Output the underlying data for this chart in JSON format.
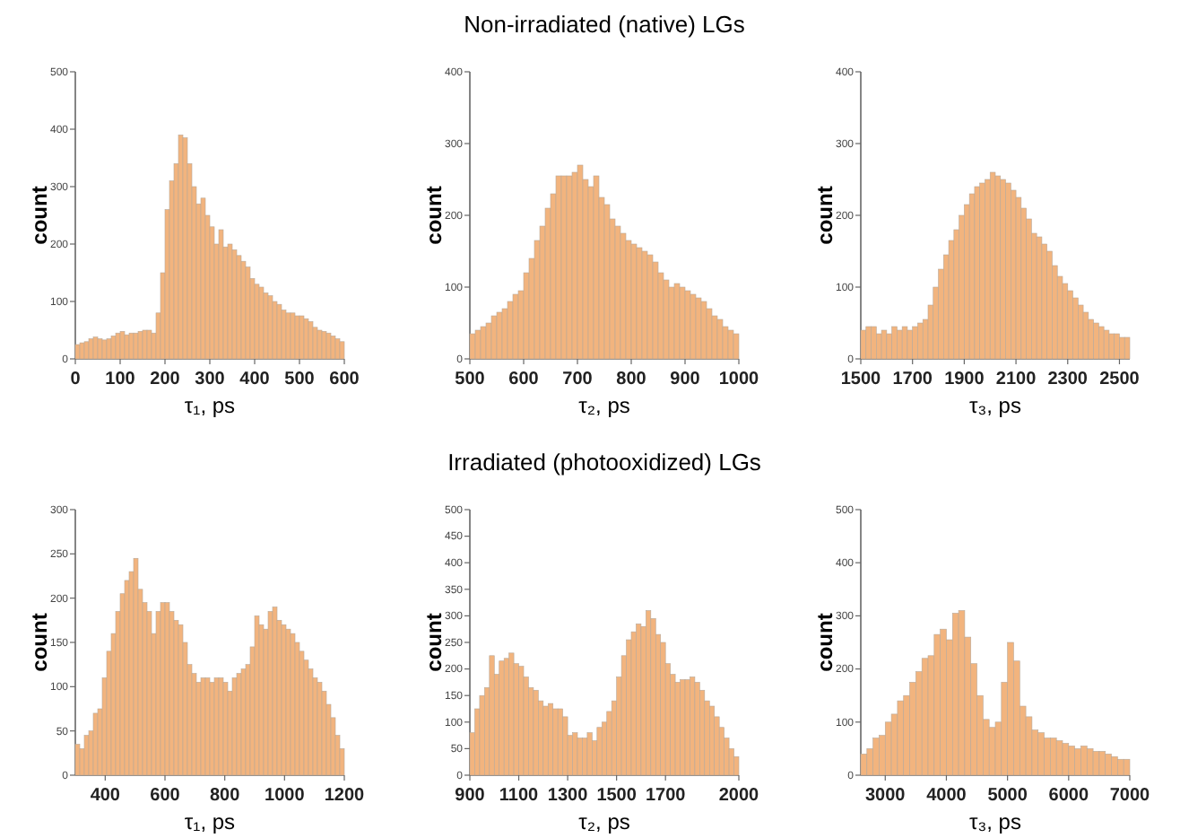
{
  "chart_data": [
    {
      "type": "histogram",
      "xlabel": "τ₁, ps",
      "ylabel": "count",
      "color": "#f2b47e",
      "xlim": [
        0,
        600
      ],
      "ylim": [
        0,
        500
      ],
      "xticks": [
        0,
        100,
        200,
        300,
        400,
        500,
        600
      ],
      "yticks": [
        0,
        100,
        200,
        300,
        400,
        500
      ],
      "bins": [
        0,
        10,
        20,
        30,
        40,
        50,
        60,
        70,
        80,
        90,
        100,
        110,
        120,
        130,
        140,
        150,
        160,
        170,
        180,
        190,
        200,
        210,
        220,
        230,
        240,
        250,
        260,
        270,
        280,
        290,
        300,
        310,
        320,
        330,
        340,
        350,
        360,
        370,
        380,
        390,
        400,
        410,
        420,
        430,
        440,
        450,
        460,
        470,
        480,
        490,
        500,
        510,
        520,
        530,
        540,
        550,
        560,
        570,
        580,
        590,
        600
      ],
      "values": [
        25,
        28,
        30,
        35,
        38,
        35,
        33,
        35,
        40,
        45,
        48,
        42,
        45,
        45,
        48,
        50,
        50,
        45,
        80,
        150,
        260,
        310,
        340,
        390,
        385,
        340,
        300,
        270,
        280,
        250,
        230,
        200,
        225,
        195,
        200,
        190,
        180,
        170,
        160,
        140,
        130,
        125,
        115,
        110,
        100,
        95,
        85,
        80,
        80,
        75,
        75,
        70,
        65,
        55,
        50,
        48,
        45,
        40,
        35,
        30
      ]
    },
    {
      "type": "histogram",
      "title": "Non-irradiated (native) LGs",
      "xlabel": "τ₂, ps",
      "ylabel": "count",
      "color": "#f2b47e",
      "xlim": [
        500,
        1000
      ],
      "ylim": [
        0,
        400
      ],
      "xticks": [
        500,
        600,
        700,
        800,
        900,
        1000
      ],
      "yticks": [
        0,
        100,
        200,
        300,
        400
      ],
      "bins": [
        500,
        510,
        520,
        530,
        540,
        550,
        560,
        570,
        580,
        590,
        600,
        610,
        620,
        630,
        640,
        650,
        660,
        670,
        680,
        690,
        700,
        710,
        720,
        730,
        740,
        750,
        760,
        770,
        780,
        790,
        800,
        810,
        820,
        830,
        840,
        850,
        860,
        870,
        880,
        890,
        900,
        910,
        920,
        930,
        940,
        950,
        960,
        970,
        980,
        990,
        1000
      ],
      "values": [
        35,
        40,
        45,
        50,
        60,
        65,
        70,
        80,
        90,
        95,
        120,
        140,
        165,
        185,
        210,
        230,
        255,
        255,
        255,
        260,
        270,
        250,
        240,
        255,
        225,
        215,
        195,
        185,
        175,
        165,
        160,
        155,
        150,
        145,
        135,
        120,
        110,
        100,
        105,
        100,
        95,
        90,
        85,
        80,
        70,
        60,
        55,
        45,
        40,
        35
      ]
    },
    {
      "type": "histogram",
      "xlabel": "τ₃, ps",
      "ylabel": "count",
      "color": "#f2b47e",
      "xlim": [
        1500,
        2540
      ],
      "ylim": [
        0,
        400
      ],
      "xticks": [
        1500,
        1700,
        1900,
        2100,
        2300,
        2500
      ],
      "yticks": [
        0,
        100,
        200,
        300,
        400
      ],
      "bins": [
        1500,
        1520,
        1540,
        1560,
        1580,
        1600,
        1620,
        1640,
        1660,
        1680,
        1700,
        1720,
        1740,
        1760,
        1780,
        1800,
        1820,
        1840,
        1860,
        1880,
        1900,
        1920,
        1940,
        1960,
        1980,
        2000,
        2020,
        2040,
        2060,
        2080,
        2100,
        2120,
        2140,
        2160,
        2180,
        2200,
        2220,
        2240,
        2260,
        2280,
        2300,
        2320,
        2340,
        2360,
        2380,
        2400,
        2420,
        2440,
        2460,
        2480,
        2500,
        2520,
        2540
      ],
      "values": [
        40,
        45,
        45,
        35,
        40,
        35,
        45,
        40,
        45,
        40,
        45,
        50,
        55,
        75,
        100,
        125,
        145,
        165,
        180,
        200,
        215,
        230,
        240,
        245,
        250,
        260,
        255,
        250,
        245,
        235,
        225,
        210,
        195,
        175,
        170,
        160,
        150,
        130,
        115,
        105,
        95,
        85,
        75,
        65,
        55,
        50,
        45,
        40,
        35,
        35,
        30,
        30
      ]
    },
    {
      "type": "histogram",
      "xlabel": "τ₁, ps",
      "ylabel": "count",
      "color": "#f2b47e",
      "xlim": [
        300,
        1200
      ],
      "ylim": [
        0,
        300
      ],
      "xticks": [
        400,
        600,
        800,
        1000,
        1200
      ],
      "yticks": [
        0,
        50,
        100,
        150,
        200,
        250,
        300
      ],
      "bins": [
        300,
        315,
        330,
        345,
        360,
        375,
        390,
        405,
        420,
        435,
        450,
        465,
        480,
        495,
        510,
        525,
        540,
        555,
        570,
        585,
        600,
        615,
        630,
        645,
        660,
        675,
        690,
        705,
        720,
        735,
        750,
        765,
        780,
        795,
        810,
        825,
        840,
        855,
        870,
        885,
        900,
        915,
        930,
        945,
        960,
        975,
        990,
        1005,
        1020,
        1035,
        1050,
        1065,
        1080,
        1095,
        1110,
        1125,
        1140,
        1155,
        1170,
        1185,
        1200
      ],
      "values": [
        35,
        30,
        45,
        50,
        70,
        75,
        110,
        140,
        160,
        185,
        205,
        220,
        230,
        245,
        210,
        195,
        185,
        160,
        185,
        195,
        195,
        185,
        175,
        170,
        150,
        125,
        115,
        105,
        110,
        110,
        105,
        110,
        110,
        105,
        95,
        110,
        115,
        120,
        125,
        145,
        180,
        170,
        165,
        185,
        190,
        175,
        170,
        165,
        160,
        150,
        140,
        130,
        120,
        110,
        105,
        95,
        80,
        65,
        45,
        30
      ]
    },
    {
      "type": "histogram",
      "title": "Irradiated (photooxidized) LGs",
      "xlabel": "τ₂, ps",
      "ylabel": "count",
      "color": "#f2b47e",
      "xlim": [
        900,
        2000
      ],
      "ylim": [
        0,
        500
      ],
      "xticks": [
        900,
        1100,
        1300,
        1500,
        1700,
        2000
      ],
      "yticks": [
        0,
        50,
        100,
        150,
        200,
        250,
        300,
        350,
        400,
        450,
        500
      ],
      "bins": [
        900,
        920,
        940,
        960,
        980,
        1000,
        1020,
        1040,
        1060,
        1080,
        1100,
        1120,
        1140,
        1160,
        1180,
        1200,
        1220,
        1240,
        1260,
        1280,
        1300,
        1320,
        1340,
        1360,
        1380,
        1400,
        1420,
        1440,
        1460,
        1480,
        1500,
        1520,
        1540,
        1560,
        1580,
        1600,
        1620,
        1640,
        1660,
        1680,
        1700,
        1720,
        1740,
        1760,
        1780,
        1800,
        1820,
        1840,
        1860,
        1880,
        1900,
        1920,
        1940,
        1960,
        1980,
        2000
      ],
      "values": [
        80,
        125,
        150,
        165,
        225,
        190,
        215,
        220,
        230,
        210,
        205,
        185,
        165,
        160,
        140,
        130,
        135,
        125,
        125,
        110,
        75,
        80,
        70,
        70,
        80,
        65,
        90,
        100,
        120,
        140,
        185,
        225,
        255,
        270,
        285,
        280,
        310,
        295,
        265,
        250,
        210,
        190,
        175,
        180,
        180,
        185,
        175,
        160,
        140,
        130,
        110,
        90,
        70,
        50,
        35
      ]
    },
    {
      "type": "histogram",
      "xlabel": "τ₃, ps",
      "ylabel": "count",
      "color": "#f2b47e",
      "xlim": [
        2600,
        7000
      ],
      "ylim": [
        0,
        500
      ],
      "xticks": [
        3000,
        4000,
        5000,
        6000,
        7000
      ],
      "yticks": [
        0,
        100,
        200,
        300,
        400,
        500
      ],
      "bins": [
        2600,
        2700,
        2800,
        2900,
        3000,
        3100,
        3200,
        3300,
        3400,
        3500,
        3600,
        3700,
        3800,
        3900,
        4000,
        4100,
        4200,
        4300,
        4400,
        4500,
        4600,
        4700,
        4800,
        4900,
        5000,
        5100,
        5200,
        5300,
        5400,
        5500,
        5600,
        5700,
        5800,
        5900,
        6000,
        6100,
        6200,
        6300,
        6400,
        6500,
        6600,
        6700,
        6800,
        6900,
        7000
      ],
      "values": [
        40,
        50,
        70,
        75,
        100,
        115,
        140,
        150,
        175,
        195,
        220,
        225,
        265,
        275,
        255,
        305,
        310,
        260,
        210,
        150,
        105,
        90,
        100,
        175,
        250,
        215,
        130,
        110,
        85,
        80,
        70,
        70,
        65,
        60,
        55,
        50,
        55,
        50,
        45,
        45,
        40,
        35,
        30,
        30
      ]
    }
  ]
}
